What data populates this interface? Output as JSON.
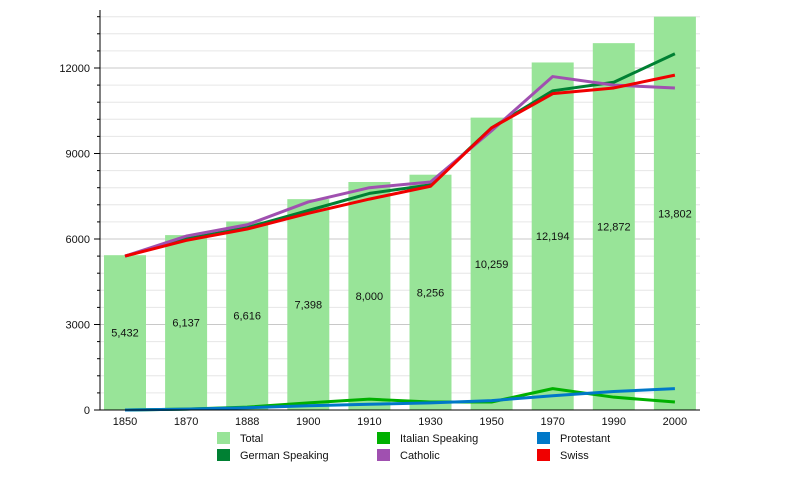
{
  "chart_data": {
    "type": "bar+line",
    "title": "",
    "xlabel": "",
    "ylabel": "",
    "categories": [
      "1850",
      "1870",
      "1888",
      "1900",
      "1910",
      "1930",
      "1950",
      "1970",
      "1990",
      "2000"
    ],
    "ylim": [
      0,
      14000
    ],
    "yticks": [
      0,
      3000,
      6000,
      9000,
      12000
    ],
    "minor_tick_step": 600,
    "grid": true,
    "legend_position": "bottom",
    "bars": {
      "name": "Total",
      "color": "#98e498",
      "values": [
        5432,
        6137,
        6616,
        7398,
        8000,
        8256,
        10259,
        12194,
        12872,
        13802
      ],
      "labels": [
        "5,432",
        "6,137",
        "6,616",
        "7,398",
        "8,000",
        "8,256",
        "10,259",
        "12,194",
        "12,872",
        "13,802"
      ]
    },
    "series": [
      {
        "name": "German Speaking",
        "color": "#008033",
        "values": [
          5400,
          6000,
          6400,
          7000,
          7600,
          7900,
          9900,
          11200,
          11500,
          12500
        ]
      },
      {
        "name": "Italian Speaking",
        "color": "#00b000",
        "values": [
          0,
          30,
          100,
          250,
          380,
          280,
          280,
          750,
          450,
          280
        ]
      },
      {
        "name": "Catholic",
        "color": "#a050b0",
        "values": [
          5400,
          6100,
          6500,
          7300,
          7800,
          8000,
          9800,
          11700,
          11400,
          11300
        ]
      },
      {
        "name": "Protestant",
        "color": "#0078c8",
        "values": [
          0,
          30,
          80,
          150,
          200,
          250,
          330,
          500,
          650,
          750
        ]
      },
      {
        "name": "Swiss",
        "color": "#f00000",
        "values": [
          5400,
          5950,
          6350,
          6900,
          7400,
          7850,
          9900,
          11100,
          11300,
          11750
        ]
      }
    ]
  }
}
